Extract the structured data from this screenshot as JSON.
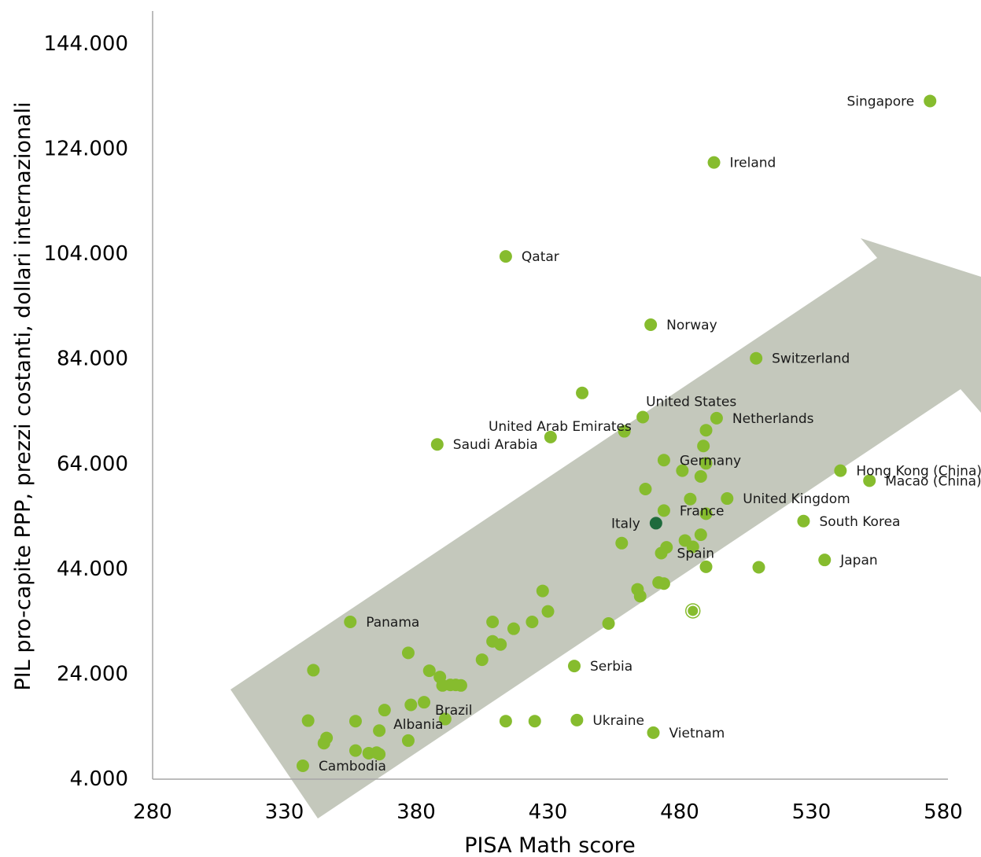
{
  "chart_data": {
    "type": "scatter",
    "title": "",
    "xlabel": "PISA Math score",
    "ylabel": "PIL pro-capite PPP, prezzi costanti, dollari internazionali",
    "xlim": [
      280,
      580
    ],
    "ylim": [
      4000,
      144000
    ],
    "xticks": [
      "280",
      "330",
      "380",
      "430",
      "480",
      "530",
      "580"
    ],
    "yticks": [
      "4.000",
      "24.000",
      "44.000",
      "64.000",
      "84.000",
      "104.000",
      "124.000",
      "144.000"
    ],
    "grid": false,
    "legend": "none",
    "colors": {
      "point": "#86bc2e",
      "highlight": "#1e6b3c",
      "arrow": "#c4c8bc",
      "axis": "#a6a6a6"
    },
    "trend_arrow": {
      "shape": "arrow",
      "direction": "up-right"
    },
    "series": [
      {
        "points": [
          {
            "x": 575,
            "y": 133000,
            "label": "Singapore",
            "anchor": "left"
          },
          {
            "x": 493,
            "y": 121300,
            "label": "Ireland",
            "anchor": "right"
          },
          {
            "x": 414,
            "y": 103400,
            "label": "Qatar",
            "anchor": "right"
          },
          {
            "x": 469,
            "y": 90400,
            "label": "Norway",
            "anchor": "right"
          },
          {
            "x": 509,
            "y": 84000,
            "label": "Switzerland",
            "anchor": "right"
          },
          {
            "x": 443,
            "y": 77400
          },
          {
            "x": 466,
            "y": 72800,
            "label": "United States",
            "anchor": "above"
          },
          {
            "x": 494,
            "y": 72600,
            "label": "Netherlands",
            "anchor": "right"
          },
          {
            "x": 459,
            "y": 70100
          },
          {
            "x": 431,
            "y": 69000,
            "label": "United Arab Emirates",
            "anchor": "above-left"
          },
          {
            "x": 388,
            "y": 67600,
            "label": "Saudi Arabia",
            "anchor": "right"
          },
          {
            "x": 489,
            "y": 67300
          },
          {
            "x": 490,
            "y": 70300
          },
          {
            "x": 474,
            "y": 64600,
            "label": "Germany",
            "anchor": "right"
          },
          {
            "x": 490,
            "y": 64000
          },
          {
            "x": 481,
            "y": 62600
          },
          {
            "x": 488,
            "y": 61500
          },
          {
            "x": 541,
            "y": 62600,
            "label": "Hong Kong (China)",
            "anchor": "right"
          },
          {
            "x": 552,
            "y": 60700,
            "label": "Macao (China)",
            "anchor": "right"
          },
          {
            "x": 467,
            "y": 59100
          },
          {
            "x": 484,
            "y": 57200
          },
          {
            "x": 498,
            "y": 57300,
            "label": "United Kingdom",
            "anchor": "right"
          },
          {
            "x": 474,
            "y": 55000,
            "label": "France",
            "anchor": "right"
          },
          {
            "x": 490,
            "y": 54400
          },
          {
            "x": 471,
            "y": 52600,
            "label": "Italy",
            "anchor": "left",
            "highlight": true
          },
          {
            "x": 527,
            "y": 53000,
            "label": "South Korea",
            "anchor": "right"
          },
          {
            "x": 482,
            "y": 49300
          },
          {
            "x": 488,
            "y": 50400
          },
          {
            "x": 458,
            "y": 48800
          },
          {
            "x": 475,
            "y": 48000
          },
          {
            "x": 473,
            "y": 46900,
            "label": "Spain",
            "anchor": "right"
          },
          {
            "x": 485,
            "y": 48100
          },
          {
            "x": 535,
            "y": 45600,
            "label": "Japan",
            "anchor": "right"
          },
          {
            "x": 490,
            "y": 44300
          },
          {
            "x": 510,
            "y": 44200
          },
          {
            "x": 472,
            "y": 41300
          },
          {
            "x": 474,
            "y": 41100
          },
          {
            "x": 464,
            "y": 40000
          },
          {
            "x": 428,
            "y": 39700
          },
          {
            "x": 465,
            "y": 38700
          },
          {
            "x": 485,
            "y": 35900,
            "ring": true
          },
          {
            "x": 430,
            "y": 35800
          },
          {
            "x": 355,
            "y": 33800,
            "label": "Panama",
            "anchor": "right"
          },
          {
            "x": 409,
            "y": 33800
          },
          {
            "x": 424,
            "y": 33800
          },
          {
            "x": 417,
            "y": 32500
          },
          {
            "x": 453,
            "y": 33500
          },
          {
            "x": 409,
            "y": 30100
          },
          {
            "x": 412,
            "y": 29500
          },
          {
            "x": 377,
            "y": 27900
          },
          {
            "x": 405,
            "y": 26600
          },
          {
            "x": 440,
            "y": 25400,
            "label": "Serbia",
            "anchor": "right"
          },
          {
            "x": 341,
            "y": 24600
          },
          {
            "x": 385,
            "y": 24500
          },
          {
            "x": 389,
            "y": 23300
          },
          {
            "x": 390,
            "y": 21700
          },
          {
            "x": 393,
            "y": 21800
          },
          {
            "x": 395,
            "y": 21800
          },
          {
            "x": 397,
            "y": 21700
          },
          {
            "x": 368,
            "y": 17000
          },
          {
            "x": 378,
            "y": 18000
          },
          {
            "x": 383,
            "y": 18500,
            "label": "Brazil",
            "anchor": "below-right"
          },
          {
            "x": 391,
            "y": 15300
          },
          {
            "x": 339,
            "y": 15000
          },
          {
            "x": 357,
            "y": 14900
          },
          {
            "x": 414,
            "y": 14900
          },
          {
            "x": 425,
            "y": 14900
          },
          {
            "x": 441,
            "y": 15100,
            "label": "Ukraine",
            "anchor": "right"
          },
          {
            "x": 366,
            "y": 13100,
            "label": "Albania",
            "anchor": "above-right"
          },
          {
            "x": 470,
            "y": 12700,
            "label": "Vietnam",
            "anchor": "right"
          },
          {
            "x": 346,
            "y": 11700
          },
          {
            "x": 345,
            "y": 10700
          },
          {
            "x": 377,
            "y": 11200
          },
          {
            "x": 357,
            "y": 9300
          },
          {
            "x": 362,
            "y": 8800
          },
          {
            "x": 365,
            "y": 8900
          },
          {
            "x": 366,
            "y": 8600
          },
          {
            "x": 337,
            "y": 6400,
            "label": "Cambodia",
            "anchor": "right"
          }
        ]
      }
    ]
  }
}
